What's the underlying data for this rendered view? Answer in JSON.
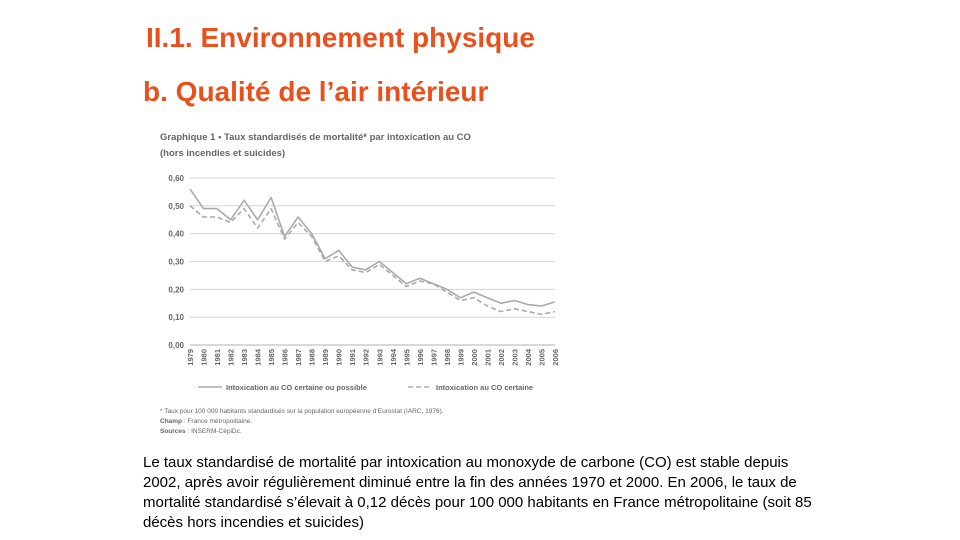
{
  "slide": {
    "title": "II.1. Environnement physique",
    "subtitle": "b. Qualité de l’air intérieur",
    "paragraph": "Le taux standardisé de mortalité par intoxication au monoxyde de carbone (CO) est stable depuis 2002, après avoir régulièrement diminué entre la fin des années 1970 et 2000. En 2006, le taux de mortalité standardisé s’élevait à 0,12 décès pour 100 000 habitants en France métropolitaine (soit 85 décès hors incendies et suicides)"
  },
  "figure": {
    "caption_prefix": "Graphique 1",
    "caption_line1": " • Taux standardisés de mortalité* par intoxication au CO",
    "caption_line2": "(hors incendies et suicides)",
    "footnote": "* Taux pour 100 000 habitants standardisés sur la population européenne d’Eurostat (IARC, 1976).",
    "champ_label": "Champ",
    "champ_text": " : France métropolitaine.",
    "sources_label": "Sources",
    "sources_text": " : INSERM-CépiDc."
  },
  "chart_data": {
    "type": "line",
    "x": [
      "1979",
      "1980",
      "1981",
      "1982",
      "1983",
      "1984",
      "1985",
      "1986",
      "1987",
      "1988",
      "1989",
      "1990",
      "1991",
      "1992",
      "1993",
      "1994",
      "1995",
      "1996",
      "1997",
      "1998",
      "1999",
      "2000",
      "2001",
      "2002",
      "2003",
      "2004",
      "2005",
      "2006"
    ],
    "series": [
      {
        "name": "Intoxication au CO certaine ou possible",
        "style": "solid",
        "values": [
          0.56,
          0.49,
          0.49,
          0.45,
          0.52,
          0.45,
          0.53,
          0.39,
          0.46,
          0.4,
          0.31,
          0.34,
          0.28,
          0.27,
          0.3,
          0.26,
          0.22,
          0.24,
          0.22,
          0.2,
          0.17,
          0.19,
          0.17,
          0.15,
          0.16,
          0.145,
          0.14,
          0.155
        ]
      },
      {
        "name": "Intoxication au CO certaine",
        "style": "dashed",
        "values": [
          0.5,
          0.46,
          0.46,
          0.44,
          0.49,
          0.42,
          0.49,
          0.38,
          0.44,
          0.39,
          0.3,
          0.32,
          0.27,
          0.26,
          0.29,
          0.25,
          0.21,
          0.23,
          0.22,
          0.19,
          0.16,
          0.17,
          0.14,
          0.12,
          0.13,
          0.12,
          0.11,
          0.12
        ]
      }
    ],
    "yticks": [
      "0,00",
      "0,10",
      "0,20",
      "0,30",
      "0,40",
      "0,50",
      "0,60"
    ],
    "ylim": [
      0,
      0.6
    ],
    "grid": true,
    "legend_position": "bottom",
    "line_color": "#aaaaaa"
  }
}
